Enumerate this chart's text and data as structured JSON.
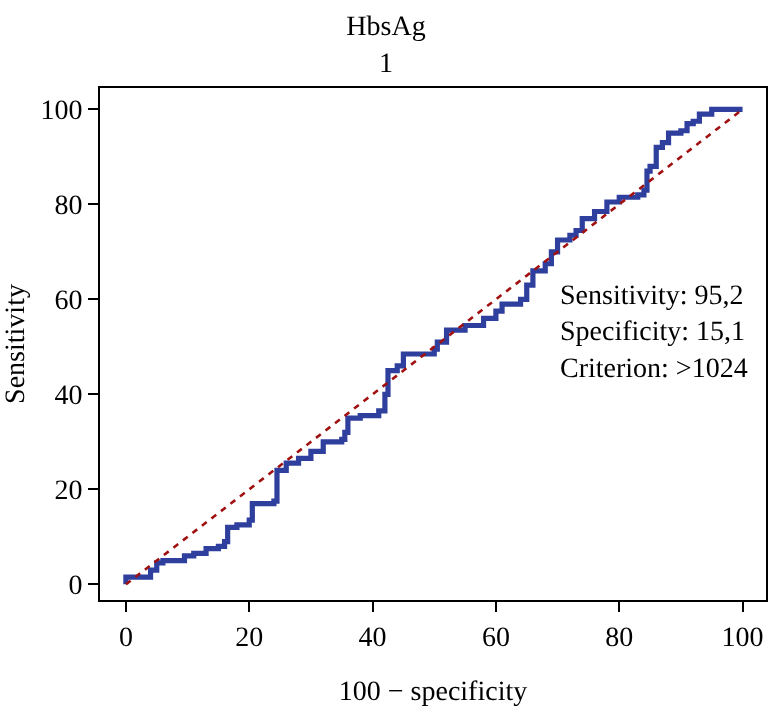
{
  "chart_data": {
    "type": "step",
    "title": "HbsAg",
    "subtitle": "1",
    "xlabel": "100 − specificity",
    "ylabel": "Sensitivity",
    "xlim": [
      -4.2,
      103.8
    ],
    "ylim": [
      -3.3,
      104.5
    ],
    "xticks": [
      0,
      20,
      40,
      60,
      80,
      100
    ],
    "yticks": [
      0,
      20,
      40,
      60,
      80,
      100
    ],
    "legend": false,
    "series": [
      {
        "color": "#2e3f9e",
        "line_style": "solid",
        "x": [
          0,
          0,
          3.5,
          4,
          5,
          6,
          9,
          9.5,
          11,
          13,
          15,
          16,
          16.5,
          18,
          20,
          20.5,
          24,
          24.5,
          26,
          28,
          30,
          32,
          35,
          35.5,
          36,
          38,
          41,
          42,
          42.5,
          44,
          45,
          50,
          50.5,
          52,
          55,
          58,
          60,
          61,
          64,
          65,
          66,
          68,
          69,
          70,
          72,
          73,
          74,
          76,
          78,
          80,
          83,
          84,
          84.5,
          85,
          86,
          87,
          88,
          90,
          91,
          92,
          93,
          95,
          100
        ],
        "values": [
          0,
          1.5,
          1.5,
          3,
          4.5,
          5,
          5,
          6,
          6.5,
          7.5,
          8,
          9,
          12,
          12.5,
          13.5,
          17,
          17.5,
          24,
          25.5,
          26.5,
          28,
          30,
          30.5,
          32,
          35,
          35.5,
          36.5,
          40,
          45,
          46,
          48.5,
          49.5,
          51,
          53.5,
          54.5,
          56,
          57.5,
          59,
          60,
          63,
          66,
          67.5,
          70,
          72.5,
          73.5,
          74.5,
          77,
          78.5,
          80.5,
          81.5,
          82,
          83,
          87,
          88,
          92,
          93,
          95,
          95.5,
          97,
          97.5,
          99,
          100,
          100
        ]
      },
      {
        "type": "line",
        "color": "#a01010",
        "line_style": "dotted",
        "x": [
          0,
          100
        ],
        "values": [
          0,
          100
        ]
      }
    ],
    "annotations": [
      "Sensitivity: 95,2",
      "Specificity: 15,1",
      "Criterion: >1024"
    ]
  }
}
